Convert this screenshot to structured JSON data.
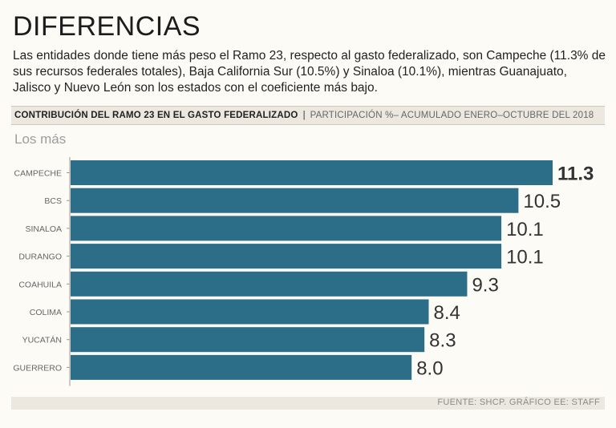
{
  "title": "DIFERENCIAS",
  "subtitle": "Las entidades donde tiene más peso el Ramo 23, respecto al gasto federalizado, son Campeche (11.3% de sus recursos federales totales), Baja California Sur (10.5%) y Sinaloa (10.1%), mientras Guanajuato, Jalisco y Nuevo León son los estados con el coeficiente más bajo.",
  "header": {
    "bold": "CONTRIBUCIÓN DEL RAMO 23 EN EL GASTO FEDERALIZADO",
    "separator": "|",
    "light": "PARTICIPACIÓN %– ACUMULADO ENERO–OCTUBRE DEL 2018"
  },
  "section_label": "Los más",
  "source": "FUENTE: SHCP. GRÁFICO EE: STAFF",
  "colors": {
    "bar": "#2c6e87",
    "label": "#666666",
    "value": "#333333"
  },
  "chart_data": {
    "type": "bar",
    "orientation": "horizontal",
    "title": "CONTRIBUCIÓN DEL RAMO 23 EN EL GASTO FEDERALIZADO",
    "subtitle": "PARTICIPACIÓN %– ACUMULADO ENERO–OCTUBRE DEL 2018",
    "categories": [
      "CAMPECHE",
      "BCS",
      "SINALOA",
      "DURANGO",
      "COAHUILA",
      "COLIMA",
      "YUCATÁN",
      "GUERRERO"
    ],
    "values": [
      11.3,
      10.5,
      10.1,
      10.1,
      9.3,
      8.4,
      8.3,
      8.0
    ],
    "value_labels": [
      "11.3",
      "10.5",
      "10.1",
      "10.1",
      "9.3",
      "8.4",
      "8.3",
      "8.0"
    ],
    "highlight_index": 0,
    "xlim": [
      0,
      11.3
    ],
    "xlabel": "",
    "ylabel": ""
  }
}
